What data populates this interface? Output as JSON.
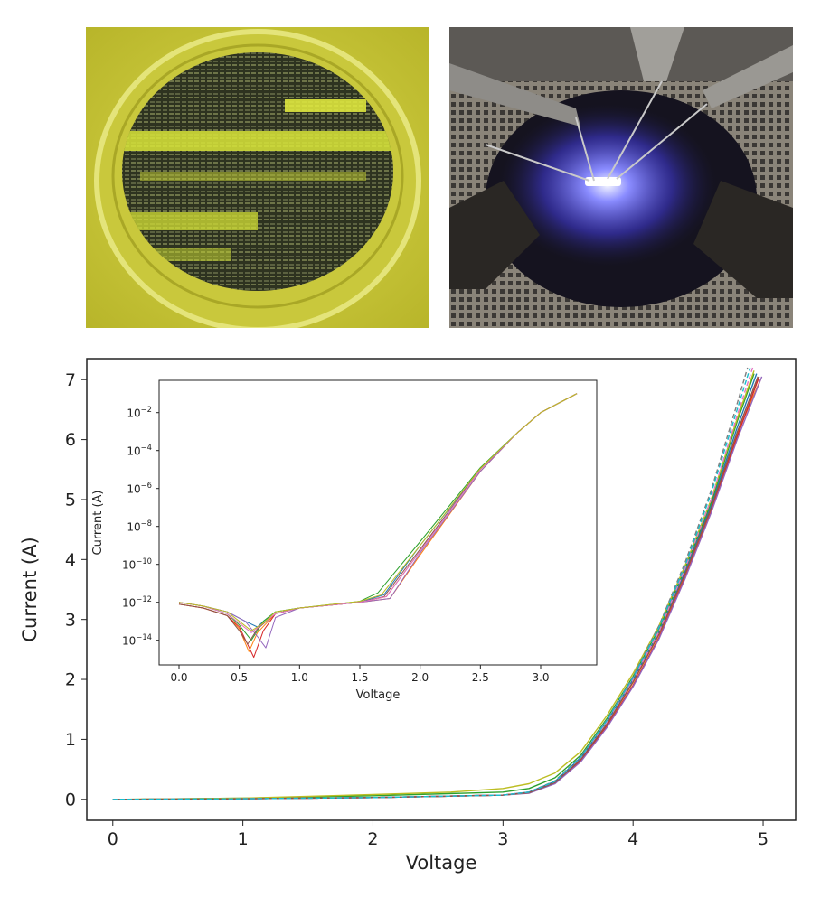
{
  "photos": [
    {
      "name": "wafer-photo",
      "description_icon": "wafer-under-yellow-light-icon"
    },
    {
      "name": "probe-station-photo",
      "description_icon": "probe-station-blue-emission-icon"
    }
  ],
  "chart_data": [
    {
      "type": "line",
      "title": "",
      "xlabel": "Voltage",
      "ylabel": "Current (A)",
      "xlim": [
        -0.2,
        5.25
      ],
      "ylim": [
        -0.35,
        7.35
      ],
      "xticks": [
        "0",
        "1",
        "2",
        "3",
        "4",
        "5"
      ],
      "yticks": [
        "0",
        "1",
        "2",
        "3",
        "4",
        "5",
        "6",
        "7"
      ],
      "grid": false,
      "legend": "none",
      "series": [
        {
          "color": "#1f77b4",
          "x": [
            0,
            1,
            2,
            3.0,
            3.2,
            3.4,
            3.6,
            3.8,
            4.0,
            4.2,
            4.4,
            4.6,
            4.8,
            4.95
          ],
          "y": [
            0,
            0.01,
            0.03,
            0.07,
            0.12,
            0.3,
            0.7,
            1.3,
            2.0,
            2.8,
            3.8,
            4.9,
            6.2,
            7.1
          ]
        },
        {
          "color": "#ff7f0e",
          "x": [
            0,
            1,
            2,
            3.0,
            3.2,
            3.4,
            3.6,
            3.8,
            4.0,
            4.2,
            4.4,
            4.6,
            4.8,
            4.98
          ],
          "y": [
            0,
            0.01,
            0.03,
            0.07,
            0.11,
            0.28,
            0.66,
            1.25,
            1.95,
            2.75,
            3.75,
            4.85,
            6.1,
            7.0
          ]
        },
        {
          "color": "#2ca02c",
          "x": [
            0,
            1,
            2,
            3.0,
            3.2,
            3.4,
            3.6,
            3.8,
            4.0,
            4.2,
            4.4,
            4.6,
            4.8,
            4.93
          ],
          "y": [
            0,
            0.02,
            0.06,
            0.12,
            0.18,
            0.36,
            0.74,
            1.35,
            2.05,
            2.85,
            3.85,
            4.95,
            6.3,
            7.1
          ]
        },
        {
          "color": "#d62728",
          "x": [
            0,
            1,
            2,
            3.0,
            3.2,
            3.4,
            3.6,
            3.8,
            4.0,
            4.2,
            4.4,
            4.6,
            4.8,
            4.97
          ],
          "y": [
            0,
            0.01,
            0.03,
            0.07,
            0.11,
            0.27,
            0.65,
            1.22,
            1.9,
            2.7,
            3.7,
            4.8,
            6.05,
            7.05
          ]
        },
        {
          "color": "#9467bd",
          "x": [
            0,
            1,
            2,
            3.0,
            3.2,
            3.4,
            3.6,
            3.8,
            4.0,
            4.2,
            4.4,
            4.6,
            4.8,
            4.99
          ],
          "y": [
            0,
            0.01,
            0.03,
            0.07,
            0.1,
            0.26,
            0.63,
            1.2,
            1.88,
            2.68,
            3.68,
            4.78,
            6.0,
            7.05
          ]
        },
        {
          "color": "#bcbd22",
          "x": [
            0,
            1,
            2,
            2.6,
            3.0,
            3.2,
            3.4,
            3.6,
            3.8,
            4.0,
            4.2,
            4.4,
            4.6,
            4.8,
            4.93
          ],
          "y": [
            0,
            0.02,
            0.08,
            0.12,
            0.18,
            0.26,
            0.44,
            0.8,
            1.4,
            2.1,
            2.9,
            3.9,
            5.0,
            6.35,
            7.15
          ]
        },
        {
          "color": "#8c564b",
          "x": [
            0,
            1,
            2,
            3.0,
            3.2,
            3.4,
            3.6,
            3.8,
            4.0,
            4.2,
            4.4,
            4.6,
            4.8,
            4.96
          ],
          "y": [
            0,
            0.01,
            0.03,
            0.07,
            0.11,
            0.28,
            0.67,
            1.26,
            1.96,
            2.76,
            3.76,
            4.86,
            6.12,
            7.05
          ]
        },
        {
          "color": "#e377c2",
          "x": [
            0,
            1,
            2,
            3.0,
            3.2,
            3.4,
            3.6,
            3.8,
            4.0,
            4.2,
            4.4,
            4.6,
            4.8,
            4.92
          ],
          "y": [
            0,
            0.01,
            0.03,
            0.07,
            0.12,
            0.3,
            0.7,
            1.3,
            2.0,
            2.8,
            3.85,
            5.0,
            6.4,
            7.2
          ],
          "dashed": true
        },
        {
          "color": "#7f7f7f",
          "x": [
            0,
            1,
            2,
            3.0,
            3.2,
            3.4,
            3.6,
            3.8,
            4.0,
            4.2,
            4.4,
            4.6,
            4.8,
            4.88
          ],
          "y": [
            0,
            0.01,
            0.03,
            0.07,
            0.12,
            0.31,
            0.72,
            1.33,
            2.05,
            2.9,
            3.95,
            5.15,
            6.6,
            7.2
          ],
          "dashed": true
        },
        {
          "color": "#17becf",
          "x": [
            0,
            1,
            2,
            3.0,
            3.2,
            3.4,
            3.6,
            3.8,
            4.0,
            4.2,
            4.4,
            4.6,
            4.8,
            4.9
          ],
          "y": [
            0,
            0.01,
            0.03,
            0.07,
            0.12,
            0.3,
            0.71,
            1.32,
            2.03,
            2.87,
            3.9,
            5.1,
            6.5,
            7.2
          ],
          "dashed": true
        }
      ]
    },
    {
      "type": "line",
      "title": "",
      "xlabel": "Voltage",
      "ylabel": "Current (A)",
      "log_y": true,
      "xlim": [
        -0.165,
        3.465
      ],
      "ylim": [
        -15.3,
        -0.3
      ],
      "xticks": [
        "0.0",
        "0.5",
        "1.0",
        "1.5",
        "2.0",
        "2.5",
        "3.0"
      ],
      "yticks": [
        "-2",
        "-4",
        "-6",
        "-8",
        "-10",
        "-12",
        "-14"
      ],
      "ytick_base": "10",
      "grid": false,
      "legend": "none",
      "series": [
        {
          "color": "#1f77b4",
          "x": [
            0,
            0.2,
            0.4,
            0.55,
            0.65,
            0.7,
            0.8,
            1.0,
            1.5,
            1.7,
            2.0,
            2.5,
            2.8,
            3.0,
            3.3
          ],
          "y": [
            -12.0,
            -12.2,
            -12.5,
            -13.0,
            -13.3,
            -13.0,
            -12.5,
            -12.3,
            -12.0,
            -11.6,
            -9.0,
            -5.0,
            -3.1,
            -2.0,
            -1.0
          ]
        },
        {
          "color": "#ff7f0e",
          "x": [
            0,
            0.2,
            0.4,
            0.5,
            0.58,
            0.65,
            0.8,
            1.0,
            1.5,
            1.75,
            2.0,
            2.5,
            2.8,
            3.0,
            3.3
          ],
          "y": [
            -12.1,
            -12.3,
            -12.7,
            -13.4,
            -14.6,
            -13.6,
            -12.6,
            -12.3,
            -12.0,
            -11.8,
            -9.5,
            -5.1,
            -3.1,
            -2.0,
            -1.0
          ]
        },
        {
          "color": "#2ca02c",
          "x": [
            0,
            0.2,
            0.4,
            0.5,
            0.6,
            0.7,
            0.8,
            1.0,
            1.5,
            1.65,
            2.0,
            2.5,
            2.8,
            3.0,
            3.3
          ],
          "y": [
            -12.0,
            -12.2,
            -12.6,
            -13.2,
            -14.0,
            -13.0,
            -12.5,
            -12.3,
            -11.95,
            -11.5,
            -8.8,
            -4.9,
            -3.1,
            -2.0,
            -1.0
          ]
        },
        {
          "color": "#d62728",
          "x": [
            0,
            0.2,
            0.4,
            0.5,
            0.62,
            0.7,
            0.8,
            1.0,
            1.5,
            1.72,
            2.0,
            2.5,
            2.8,
            3.0,
            3.3
          ],
          "y": [
            -12.1,
            -12.3,
            -12.7,
            -13.3,
            -14.9,
            -13.5,
            -12.6,
            -12.3,
            -12.0,
            -11.7,
            -9.3,
            -5.0,
            -3.1,
            -2.0,
            -1.0
          ]
        },
        {
          "color": "#9467bd",
          "x": [
            0,
            0.2,
            0.4,
            0.55,
            0.65,
            0.72,
            0.8,
            1.0,
            1.5,
            1.75,
            2.0,
            2.5,
            2.8,
            3.0,
            3.3
          ],
          "y": [
            -12.0,
            -12.2,
            -12.5,
            -13.0,
            -13.8,
            -14.4,
            -12.8,
            -12.3,
            -12.0,
            -11.8,
            -9.4,
            -5.1,
            -3.1,
            -2.0,
            -1.0
          ]
        },
        {
          "color": "#8c564b",
          "x": [
            0,
            0.2,
            0.4,
            0.5,
            0.57,
            0.65,
            0.8,
            1.0,
            1.5,
            1.7,
            2.0,
            2.5,
            2.8,
            3.0,
            3.3
          ],
          "y": [
            -12.1,
            -12.3,
            -12.7,
            -13.5,
            -14.2,
            -13.4,
            -12.6,
            -12.3,
            -12.0,
            -11.7,
            -9.2,
            -5.0,
            -3.1,
            -2.0,
            -1.0
          ]
        },
        {
          "color": "#e377c2",
          "x": [
            0,
            0.2,
            0.4,
            0.5,
            0.6,
            0.68,
            0.8,
            1.0,
            1.5,
            1.72,
            2.0,
            2.5,
            2.8,
            3.0,
            3.3
          ],
          "y": [
            -12.0,
            -12.2,
            -12.6,
            -13.1,
            -13.6,
            -13.2,
            -12.6,
            -12.3,
            -12.0,
            -11.7,
            -9.3,
            -5.0,
            -3.1,
            -2.0,
            -1.0
          ]
        },
        {
          "color": "#bcbd22",
          "x": [
            0,
            0.2,
            0.4,
            0.5,
            0.6,
            0.7,
            0.8,
            1.0,
            1.5,
            1.68,
            2.0,
            2.5,
            2.8,
            3.0,
            3.3
          ],
          "y": [
            -12.0,
            -12.2,
            -12.5,
            -13.0,
            -13.5,
            -13.1,
            -12.5,
            -12.3,
            -11.95,
            -11.6,
            -9.0,
            -4.95,
            -3.1,
            -2.0,
            -1.0
          ]
        }
      ]
    }
  ]
}
